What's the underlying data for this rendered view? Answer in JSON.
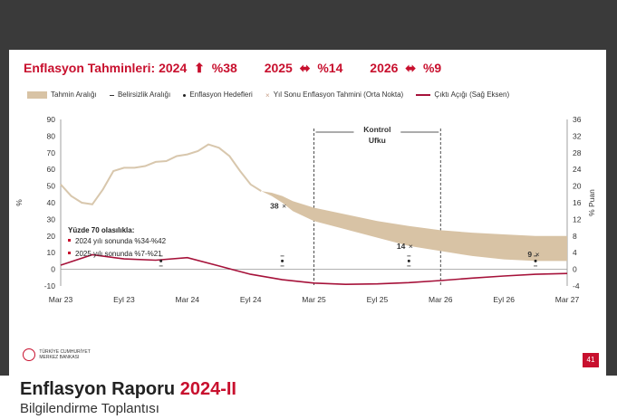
{
  "header": {
    "title_main": "Enflasyon Tahminleri: 2024",
    "t2024_value": "%38",
    "t2025_label": "2025",
    "t2025_value": "%14",
    "t2026_label": "2026",
    "t2026_value": "%9"
  },
  "legend": [
    {
      "label": "Tahmin Aralığı",
      "kind": "band"
    },
    {
      "label": "Belirsizlik Aralığı",
      "kind": "dash"
    },
    {
      "label": "Enflasyon Hedefleri",
      "kind": "dot"
    },
    {
      "label": "Yıl Sonu Enflasyon Tahmini (Orta Nokta)",
      "kind": "cross"
    },
    {
      "label": "Çıktı Açığı (Sağ Eksen)",
      "kind": "line"
    }
  ],
  "chart_data": {
    "type": "line",
    "x_ticks": [
      "Mar 23",
      "Eyl 23",
      "Mar 24",
      "Eyl 24",
      "Mar 25",
      "Eyl 25",
      "Mar 26",
      "Eyl 26",
      "Mar 27"
    ],
    "ylabel_left": "%",
    "ylabel_right": "% Puan",
    "ylim_left": [
      -10,
      90
    ],
    "yticks_left": [
      -10,
      0,
      10,
      20,
      30,
      40,
      50,
      60,
      70,
      80,
      90
    ],
    "ylim_right": [
      -4,
      36
    ],
    "yticks_right": [
      -4,
      0,
      4,
      8,
      12,
      16,
      20,
      24,
      28,
      32,
      36
    ],
    "control_horizon_label_1": "Kontrol",
    "control_horizon_label_2": "Ufku",
    "control_horizon_start": 24,
    "control_horizon_end": 36,
    "inflation_actual": [
      [
        0,
        51
      ],
      [
        1,
        44
      ],
      [
        2,
        40
      ],
      [
        3,
        39
      ],
      [
        4,
        48
      ],
      [
        5,
        59
      ],
      [
        6,
        61
      ],
      [
        7,
        61
      ],
      [
        8,
        62
      ],
      [
        9,
        64.5
      ],
      [
        10,
        65
      ],
      [
        11,
        68
      ],
      [
        12,
        69
      ],
      [
        13,
        71
      ],
      [
        14,
        75
      ],
      [
        15,
        73
      ],
      [
        16,
        68
      ],
      [
        17,
        59
      ],
      [
        18,
        51
      ],
      [
        19,
        47
      ]
    ],
    "band_upper": [
      [
        19,
        47
      ],
      [
        20,
        46
      ],
      [
        21,
        44
      ],
      [
        22,
        41
      ],
      [
        24,
        37
      ],
      [
        27,
        33
      ],
      [
        30,
        29
      ],
      [
        33,
        26
      ],
      [
        36,
        23.5
      ],
      [
        39,
        22
      ],
      [
        42,
        21
      ],
      [
        45,
        20
      ],
      [
        48,
        20
      ]
    ],
    "band_lower": [
      [
        19,
        47
      ],
      [
        20,
        44
      ],
      [
        21,
        40
      ],
      [
        22,
        35
      ],
      [
        24,
        29
      ],
      [
        27,
        24
      ],
      [
        30,
        19
      ],
      [
        33,
        14
      ],
      [
        36,
        11
      ],
      [
        39,
        8
      ],
      [
        42,
        6
      ],
      [
        45,
        5
      ],
      [
        48,
        5
      ]
    ],
    "year_end_forecasts": [
      {
        "x": 21,
        "y": 38,
        "label": "38"
      },
      {
        "x": 33,
        "y": 14,
        "label": "14"
      },
      {
        "x": 45,
        "y": 9,
        "label": "9"
      }
    ],
    "inflation_targets": [
      [
        9.5,
        5
      ],
      [
        21,
        5
      ],
      [
        33,
        5
      ],
      [
        45,
        5
      ]
    ],
    "uncertainty_ranges": [
      {
        "x": 9.5,
        "low": 2,
        "high": 8
      },
      {
        "x": 21,
        "low": 2,
        "high": 8
      },
      {
        "x": 33,
        "low": 2,
        "high": 8
      },
      {
        "x": 45,
        "low": 2,
        "high": 8
      }
    ],
    "output_gap": [
      [
        0,
        1
      ],
      [
        3,
        3.5
      ],
      [
        6,
        2.5
      ],
      [
        9,
        2.2
      ],
      [
        12,
        2.8
      ],
      [
        15,
        0.8
      ],
      [
        18,
        -1.2
      ],
      [
        21,
        -2.5
      ],
      [
        24,
        -3.3
      ],
      [
        27,
        -3.6
      ],
      [
        30,
        -3.5
      ],
      [
        33,
        -3.2
      ],
      [
        36,
        -2.7
      ],
      [
        39,
        -2.1
      ],
      [
        42,
        -1.6
      ],
      [
        45,
        -1.2
      ],
      [
        48,
        -1
      ]
    ],
    "annotation_title": "Yüzde 70 olasılıkla:",
    "annotation_items": [
      "2024 yılı sonunda %34-%42",
      "2025 yılı sonunda %7-%21"
    ]
  },
  "footer": {
    "title_main": "Enflasyon Raporu",
    "title_accent": "2024-II",
    "subtitle": "Bilgilendirme Toplantısı",
    "logo_line1": "TÜRKİYE CUMHURİYET",
    "logo_line2": "MERKEZ BANKASI",
    "page_number": "41"
  },
  "colors": {
    "accent": "#c8102e",
    "band": "#d8c3a5",
    "actual_line": "#d8c7ad",
    "output_gap": "#a6123a"
  }
}
